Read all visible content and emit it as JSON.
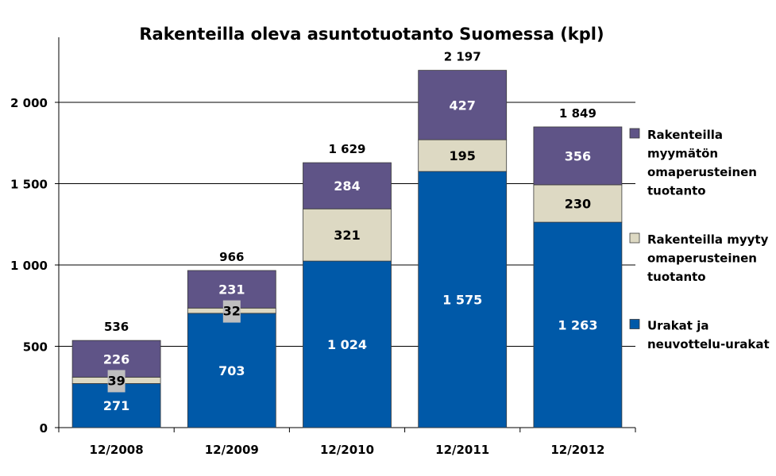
{
  "chart_data": {
    "type": "bar",
    "stacked": true,
    "title": "Rakenteilla oleva asuntotuotanto Suomessa (kpl)",
    "categories": [
      "12/2008",
      "12/2009",
      "12/2010",
      "12/2011",
      "12/2012"
    ],
    "series": [
      {
        "name": "Urakat ja neuvottelu-urakat",
        "legend_lines": [
          "Urakat ja",
          "neuvottelu-urakat"
        ],
        "values": [
          271,
          703,
          1024,
          1575,
          1263
        ],
        "labels": [
          "271",
          "703",
          "1 024",
          "1 575",
          "1 263"
        ],
        "color": "#0059a8",
        "label_color": "#ffffff"
      },
      {
        "name": "Rakenteilla myyty omaperusteinen tuotanto",
        "legend_lines": [
          "Rakenteilla myyty",
          "omaperusteinen",
          "tuotanto"
        ],
        "values": [
          39,
          32,
          321,
          195,
          230
        ],
        "labels": [
          "39",
          "32",
          "321",
          "195",
          "230"
        ],
        "color": "#ddd9c3",
        "label_color": "#000000"
      },
      {
        "name": "Rakenteilla myymätön omaperusteinen tuotanto",
        "legend_lines": [
          "Rakenteilla",
          "myymätön",
          "omaperusteinen",
          "tuotanto"
        ],
        "values": [
          226,
          231,
          284,
          427,
          356
        ],
        "labels": [
          "226",
          "231",
          "284",
          "427",
          "356"
        ],
        "color": "#5f5487",
        "label_color": "#ffffff"
      }
    ],
    "totals": [
      536,
      966,
      1629,
      2197,
      1849
    ],
    "total_labels": [
      "536",
      "966",
      "1 629",
      "2 197",
      "1 849"
    ],
    "ylim": [
      0,
      2400
    ],
    "yticks": [
      0,
      500,
      1000,
      1500,
      2000
    ],
    "ytick_labels": [
      "0",
      "500",
      "1 000",
      "1 500",
      "2 000"
    ],
    "grid": true,
    "legend_position": "right",
    "xlabel": "",
    "ylabel": ""
  }
}
